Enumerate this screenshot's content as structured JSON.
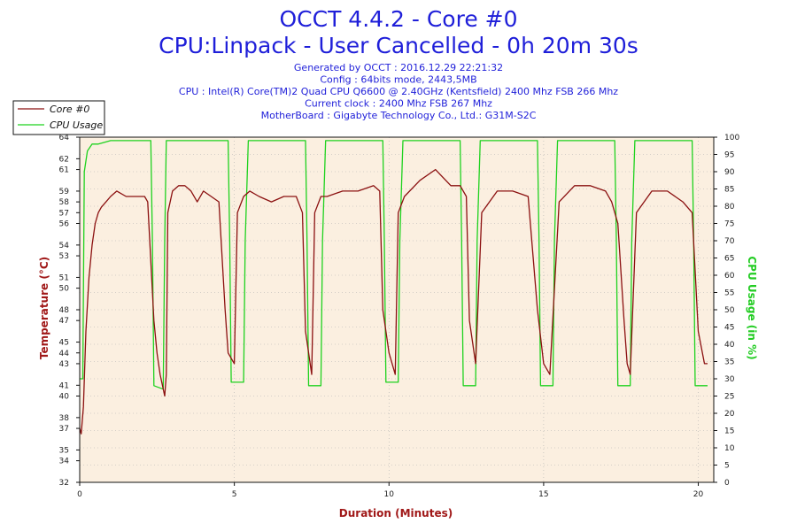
{
  "header": {
    "title": "OCCT 4.4.2 - Core #0",
    "subtitle": "CPU:Linpack - User Cancelled - 0h 20m 30s",
    "info_lines": [
      "Generated by OCCT : 2016.12.29 22:21:32",
      "Config : 64bits mode, 2443,5MB",
      "CPU : Intel(R) Core(TM)2 Quad CPU Q6600 @ 2.40GHz (Kentsfield) 2400 Mhz FSB 266 Mhz",
      "Current clock : 2400 Mhz FSB 267 Mhz",
      "MotherBoard : Gigabyte Technology Co., Ltd.: G31M-S2C"
    ]
  },
  "colors": {
    "temperature": "#8b1010",
    "cpu_usage": "#1fd21f",
    "plot_bg": "#fbefe0",
    "grid": "#b0b0b0"
  },
  "chart_data": {
    "type": "line",
    "xlabel": "Duration (Minutes)",
    "ylabel_left": "Temperature (°C)",
    "ylabel_right": "CPU Usage (in %)",
    "xlim": [
      0,
      20.5
    ],
    "ylim_left": [
      32,
      64
    ],
    "ylim_right": [
      0,
      100
    ],
    "x_ticks": [
      0,
      5,
      10,
      15,
      20
    ],
    "y_left_ticks": [
      32,
      34,
      35,
      37,
      38,
      40,
      41,
      43,
      44,
      45,
      47,
      48,
      50,
      51,
      53,
      54,
      56,
      57,
      58,
      59,
      61,
      62,
      64
    ],
    "y_right_ticks": [
      0,
      5,
      10,
      15,
      20,
      25,
      30,
      35,
      40,
      45,
      50,
      55,
      60,
      65,
      70,
      75,
      80,
      85,
      90,
      95,
      100
    ],
    "grid": true,
    "legend_position": "top-left",
    "series": [
      {
        "name": "Core #0",
        "axis": "left",
        "x": [
          0,
          0.05,
          0.12,
          0.2,
          0.3,
          0.4,
          0.5,
          0.6,
          0.7,
          0.85,
          1.0,
          1.2,
          1.5,
          1.8,
          2.1,
          2.2,
          2.4,
          2.5,
          2.6,
          2.75,
          2.8,
          2.85,
          3.0,
          3.2,
          3.4,
          3.6,
          3.8,
          4.0,
          4.5,
          4.7,
          4.8,
          5.0,
          5.1,
          5.3,
          5.5,
          5.8,
          6.2,
          6.6,
          7.0,
          7.2,
          7.3,
          7.5,
          7.6,
          7.8,
          8.0,
          8.5,
          9.0,
          9.5,
          9.7,
          9.8,
          10.0,
          10.2,
          10.3,
          10.5,
          11.0,
          11.5,
          12.0,
          12.3,
          12.5,
          12.6,
          12.8,
          13.0,
          13.5,
          14.0,
          14.5,
          14.8,
          15.0,
          15.2,
          15.5,
          16.0,
          16.5,
          17.0,
          17.2,
          17.4,
          17.6,
          17.7,
          17.8,
          18.0,
          18.5,
          19.0,
          19.5,
          19.8,
          20.0,
          20.2,
          20.3
        ],
        "values": [
          37,
          36.5,
          39,
          46,
          51,
          54,
          56,
          57,
          57.5,
          58,
          58.5,
          59,
          58.5,
          58.5,
          58.5,
          58,
          47,
          44,
          42,
          40,
          42,
          57,
          59,
          59.5,
          59.5,
          59,
          58,
          59,
          58,
          48,
          44,
          43,
          57,
          58.5,
          59,
          58.5,
          58,
          58.5,
          58.5,
          57,
          46,
          42,
          57,
          58.5,
          58.5,
          59,
          59,
          59.5,
          59,
          48,
          44,
          42,
          57,
          58.5,
          60,
          61,
          59.5,
          59.5,
          58.5,
          47,
          43,
          57,
          59,
          59,
          58.5,
          48,
          43,
          42,
          58,
          59.5,
          59.5,
          59,
          58,
          56,
          47,
          43,
          42,
          57,
          59,
          59,
          58,
          57,
          46,
          43,
          43
        ]
      },
      {
        "name": "CPU Usage",
        "axis": "right",
        "x": [
          0,
          0.1,
          0.15,
          0.25,
          0.4,
          0.6,
          1.0,
          2.2,
          2.3,
          2.35,
          2.4,
          2.7,
          2.75,
          2.8,
          2.9,
          3.5,
          4.8,
          4.85,
          4.9,
          5.3,
          5.35,
          5.45,
          7.3,
          7.35,
          7.4,
          7.8,
          7.85,
          7.95,
          9.8,
          9.85,
          9.9,
          10.3,
          10.35,
          10.45,
          12.3,
          12.35,
          12.4,
          12.8,
          12.85,
          12.95,
          14.8,
          14.85,
          14.9,
          15.3,
          15.35,
          15.45,
          17.3,
          17.35,
          17.4,
          17.8,
          17.85,
          17.95,
          19.8,
          19.85,
          19.9,
          20.3
        ],
        "values": [
          30,
          30,
          90,
          96,
          98,
          98,
          99,
          99,
          99,
          70,
          28,
          27,
          70,
          99,
          99,
          99,
          99,
          70,
          29,
          29,
          70,
          99,
          99,
          70,
          28,
          28,
          70,
          99,
          99,
          70,
          29,
          29,
          70,
          99,
          99,
          70,
          28,
          28,
          70,
          99,
          99,
          70,
          28,
          28,
          70,
          99,
          99,
          70,
          28,
          28,
          70,
          99,
          99,
          70,
          28,
          28
        ]
      }
    ]
  }
}
